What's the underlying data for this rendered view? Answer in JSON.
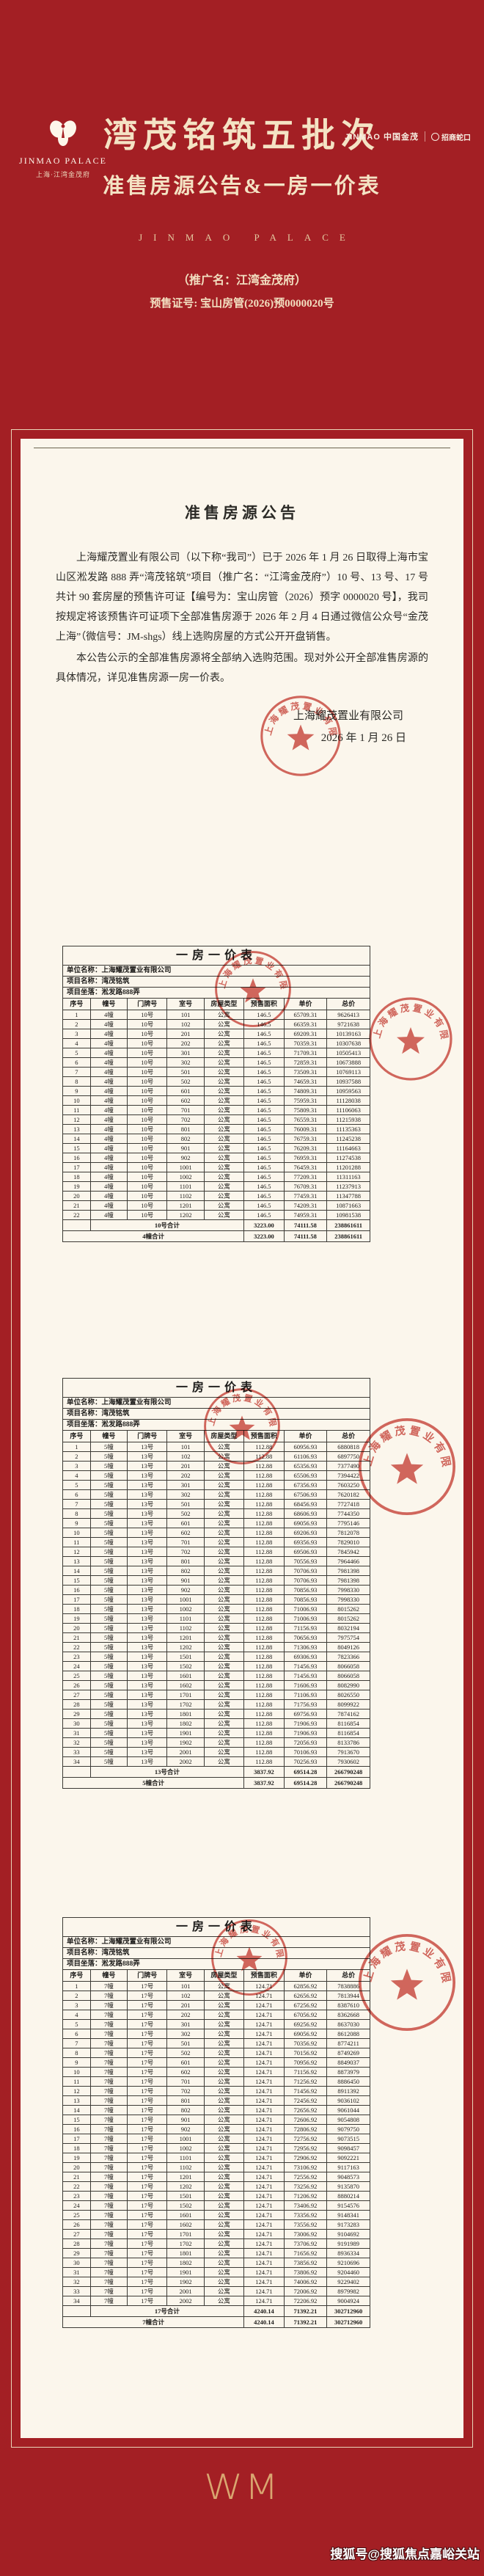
{
  "page": {
    "background_red": "#a31f24",
    "panel_cream": "#fbf6ec",
    "accent_gold": "#e4c9a0",
    "stamp_red": "#c9453c"
  },
  "header": {
    "brand": {
      "icon": "orchid-logo",
      "name": "JINMAO PALACE",
      "sub": "上海·江湾金茂府"
    },
    "partners": {
      "jinmao": "JINMAO 中国金茂",
      "cmsk": "招商蛇口"
    },
    "title": "湾茂铭筑五批次",
    "subtitle": "准售房源公告&一房一价表",
    "spaced_brand": "JINMAO PALACE",
    "promo_name": "（推广名：江湾金茂府）",
    "license": "预售证号: 宝山房管(2026)预0000020号"
  },
  "announcement": {
    "title": "准售房源公告",
    "p1": "上海耀茂置业有限公司（以下称“我司”）已于 2026 年 1 月 26 日取得上海市宝山区淞发路 888 弄“湾茂铭筑”项目（推广名：“江湾金茂府”）10 号、13 号、17 号共计 90 套房屋的预售许可证【编号为：宝山房管（2026）预字 0000020 号】，我司按规定将该预售许可证项下全部准售房源于 2026 年 2 月 4 日通过微信公众号“金茂上海”（微信号：JM-shgs）线上选购房屋的方式公开开盘销售。",
    "p2": "本公告公示的全部准售房源将全部纳入选购范围。现对外公开全部准售房源的具体情况，详见准售房源一房一价表。",
    "company": "上海耀茂置业有限公司",
    "date": "2026 年 1 月 26 日"
  },
  "seal_text": "上海耀茂置业有限公司",
  "tables": [
    {
      "title": "一房一价表",
      "meta": [
        "单位名称：上海耀茂置业有限公司",
        "项目名称：湾茂铭筑",
        "项目坐落：淞发路888弄"
      ],
      "columns": [
        "序号",
        "幢号",
        "门牌号",
        "室号",
        "房屋类型",
        "预售面积",
        "单价",
        "总价"
      ],
      "block": "4幢",
      "gate": "10号",
      "house_type": "公寓",
      "area": "146.5",
      "rows": [
        [
          "101",
          "65709.31",
          "9626413"
        ],
        [
          "102",
          "66359.31",
          "9721638"
        ],
        [
          "201",
          "69209.31",
          "10139163"
        ],
        [
          "202",
          "70359.31",
          "10307638"
        ],
        [
          "301",
          "71709.31",
          "10505413"
        ],
        [
          "302",
          "72859.31",
          "10673888"
        ],
        [
          "501",
          "73509.31",
          "10769113"
        ],
        [
          "502",
          "74659.31",
          "10937588"
        ],
        [
          "601",
          "74809.31",
          "10959563"
        ],
        [
          "602",
          "75959.31",
          "11128038"
        ],
        [
          "701",
          "75809.31",
          "11106063"
        ],
        [
          "702",
          "76559.31",
          "11215938"
        ],
        [
          "801",
          "76009.31",
          "11135363"
        ],
        [
          "802",
          "76759.31",
          "11245238"
        ],
        [
          "901",
          "76209.31",
          "11164663"
        ],
        [
          "902",
          "76959.31",
          "11274538"
        ],
        [
          "1001",
          "76459.31",
          "11201288"
        ],
        [
          "1002",
          "77209.31",
          "11311163"
        ],
        [
          "1101",
          "76709.31",
          "11237913"
        ],
        [
          "1102",
          "77459.31",
          "11347788"
        ],
        [
          "1201",
          "74209.31",
          "10871663"
        ],
        [
          "1202",
          "74959.31",
          "10981538"
        ]
      ],
      "totals": [
        {
          "label": "10号合计",
          "style": "sub",
          "area": "3223.00",
          "unit_price": "74111.58",
          "total_price": "238861611"
        },
        {
          "label": "4幢合计",
          "style": "grand",
          "area": "3223.00",
          "unit_price": "74111.58",
          "total_price": "238861611"
        }
      ]
    },
    {
      "title": "一房一价表",
      "meta": [
        "单位名称：上海耀茂置业有限公司",
        "项目名称：湾茂铭筑",
        "项目坐落：淞发路888弄"
      ],
      "columns": [
        "序号",
        "幢号",
        "门牌号",
        "室号",
        "房屋类型",
        "预售面积",
        "单价",
        "总价"
      ],
      "block": "5幢",
      "gate": "13号",
      "house_type": "公寓",
      "area": "112.88",
      "rows": [
        [
          "101",
          "60956.93",
          "6880818"
        ],
        [
          "102",
          "61106.93",
          "6897750"
        ],
        [
          "201",
          "65356.93",
          "7377490"
        ],
        [
          "202",
          "65506.93",
          "7394422"
        ],
        [
          "301",
          "67356.93",
          "7603250"
        ],
        [
          "302",
          "67506.93",
          "7620182"
        ],
        [
          "501",
          "68456.93",
          "7727418"
        ],
        [
          "502",
          "68606.93",
          "7744350"
        ],
        [
          "601",
          "69056.93",
          "7795146"
        ],
        [
          "602",
          "69206.93",
          "7812078"
        ],
        [
          "701",
          "69356.93",
          "7829010"
        ],
        [
          "702",
          "69506.93",
          "7845942"
        ],
        [
          "801",
          "70556.93",
          "7964466"
        ],
        [
          "802",
          "70706.93",
          "7981398"
        ],
        [
          "901",
          "70706.93",
          "7981398"
        ],
        [
          "902",
          "70856.93",
          "7998330"
        ],
        [
          "1001",
          "70856.93",
          "7998330"
        ],
        [
          "1002",
          "71006.93",
          "8015262"
        ],
        [
          "1101",
          "71006.93",
          "8015262"
        ],
        [
          "1102",
          "71156.93",
          "8032194"
        ],
        [
          "1201",
          "70656.93",
          "7975754"
        ],
        [
          "1202",
          "71306.93",
          "8049126"
        ],
        [
          "1501",
          "69306.93",
          "7823366"
        ],
        [
          "1502",
          "71456.93",
          "8066058"
        ],
        [
          "1601",
          "71456.93",
          "8066058"
        ],
        [
          "1602",
          "71606.93",
          "8082990"
        ],
        [
          "1701",
          "71106.93",
          "8026550"
        ],
        [
          "1702",
          "71756.93",
          "8099922"
        ],
        [
          "1801",
          "69756.93",
          "7874162"
        ],
        [
          "1802",
          "71906.93",
          "8116854"
        ],
        [
          "1901",
          "71906.93",
          "8116854"
        ],
        [
          "1902",
          "72056.93",
          "8133786"
        ],
        [
          "2001",
          "70106.93",
          "7913670"
        ],
        [
          "2002",
          "70256.93",
          "7930602"
        ]
      ],
      "totals": [
        {
          "label": "13号合计",
          "style": "sub",
          "area": "3837.92",
          "unit_price": "69514.28",
          "total_price": "266790248"
        },
        {
          "label": "5幢合计",
          "style": "grand",
          "area": "3837.92",
          "unit_price": "69514.28",
          "total_price": "266790248"
        }
      ]
    },
    {
      "title": "一房一价表",
      "meta": [
        "单位名称：上海耀茂置业有限公司",
        "项目名称：湾茂铭筑",
        "项目坐落：淞发路888弄"
      ],
      "columns": [
        "序号",
        "幢号",
        "门牌号",
        "室号",
        "房屋类型",
        "预售面积",
        "单价",
        "总价"
      ],
      "block": "7幢",
      "gate": "17号",
      "house_type": "公寓",
      "area": "124.71",
      "rows": [
        [
          "101",
          "62856.92",
          "7838886"
        ],
        [
          "102",
          "62656.92",
          "7813944"
        ],
        [
          "201",
          "67256.92",
          "8387610"
        ],
        [
          "202",
          "67056.92",
          "8362668"
        ],
        [
          "301",
          "69256.92",
          "8637030"
        ],
        [
          "302",
          "69056.92",
          "8612088"
        ],
        [
          "501",
          "70356.92",
          "8774211"
        ],
        [
          "502",
          "70156.92",
          "8749269"
        ],
        [
          "601",
          "70956.92",
          "8849037"
        ],
        [
          "602",
          "71156.92",
          "8873979"
        ],
        [
          "701",
          "71256.92",
          "8886450"
        ],
        [
          "702",
          "71456.92",
          "8911392"
        ],
        [
          "801",
          "72456.92",
          "9036102"
        ],
        [
          "802",
          "72656.92",
          "9061044"
        ],
        [
          "901",
          "72606.92",
          "9054808"
        ],
        [
          "902",
          "72806.92",
          "9079750"
        ],
        [
          "1001",
          "72756.92",
          "9073515"
        ],
        [
          "1002",
          "72956.92",
          "9098457"
        ],
        [
          "1101",
          "72906.92",
          "9092221"
        ],
        [
          "1102",
          "73106.92",
          "9117163"
        ],
        [
          "1201",
          "72556.92",
          "9048573"
        ],
        [
          "1202",
          "73256.92",
          "9135870"
        ],
        [
          "1501",
          "71206.92",
          "8880214"
        ],
        [
          "1502",
          "73406.92",
          "9154576"
        ],
        [
          "1601",
          "73356.92",
          "9148341"
        ],
        [
          "1602",
          "73556.92",
          "9173283"
        ],
        [
          "1701",
          "73006.92",
          "9104692"
        ],
        [
          "1702",
          "73706.92",
          "9191989"
        ],
        [
          "1801",
          "71656.92",
          "8936334"
        ],
        [
          "1802",
          "73856.92",
          "9210696"
        ],
        [
          "1901",
          "73806.92",
          "9204460"
        ],
        [
          "1902",
          "74006.92",
          "9229402"
        ],
        [
          "2001",
          "72006.92",
          "8979982"
        ],
        [
          "2002",
          "72206.92",
          "9004924"
        ]
      ],
      "totals": [
        {
          "label": "17号合计",
          "style": "sub",
          "area": "4240.14",
          "unit_price": "71392.21",
          "total_price": "302712960"
        },
        {
          "label": "7幢合计",
          "style": "grand",
          "area": "4240.14",
          "unit_price": "71392.21",
          "total_price": "302712960"
        }
      ]
    }
  ],
  "footer": {
    "logo_text": "WM",
    "watermark": "搜狐号@搜狐焦点嘉峪关站"
  }
}
